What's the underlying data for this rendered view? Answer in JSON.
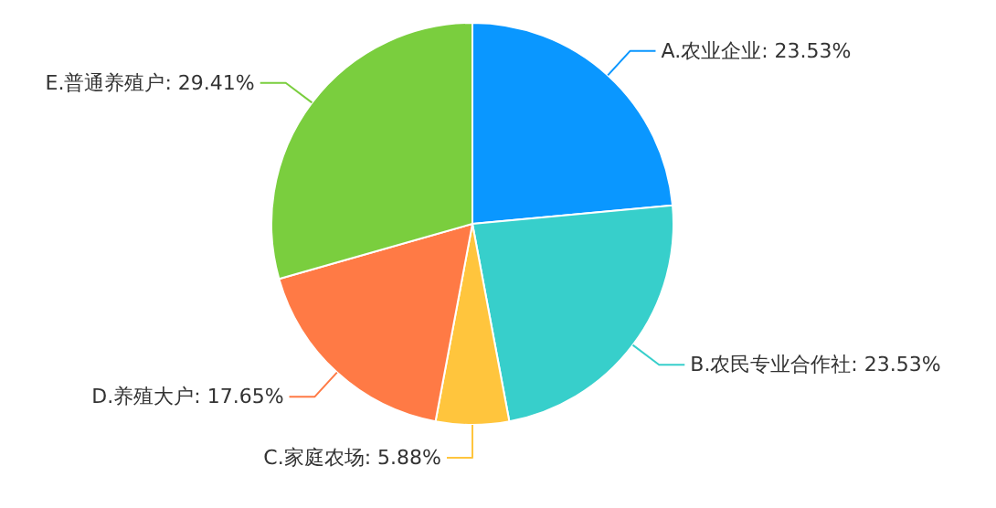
{
  "chart_data": {
    "type": "pie",
    "categories": [
      "A.农业企业",
      "B.农民专业合作社",
      "C.家庭农场",
      "D.养殖大户",
      "E.普通养殖户"
    ],
    "values": [
      23.53,
      23.53,
      5.88,
      17.65,
      29.41
    ],
    "value_labels": [
      "23.53%",
      "23.53%",
      "5.88%",
      "17.65%",
      "29.41%"
    ],
    "colors": [
      "#0a97ff",
      "#37cfcb",
      "#ffc53d",
      "#ff7a45",
      "#7ace3e"
    ]
  }
}
